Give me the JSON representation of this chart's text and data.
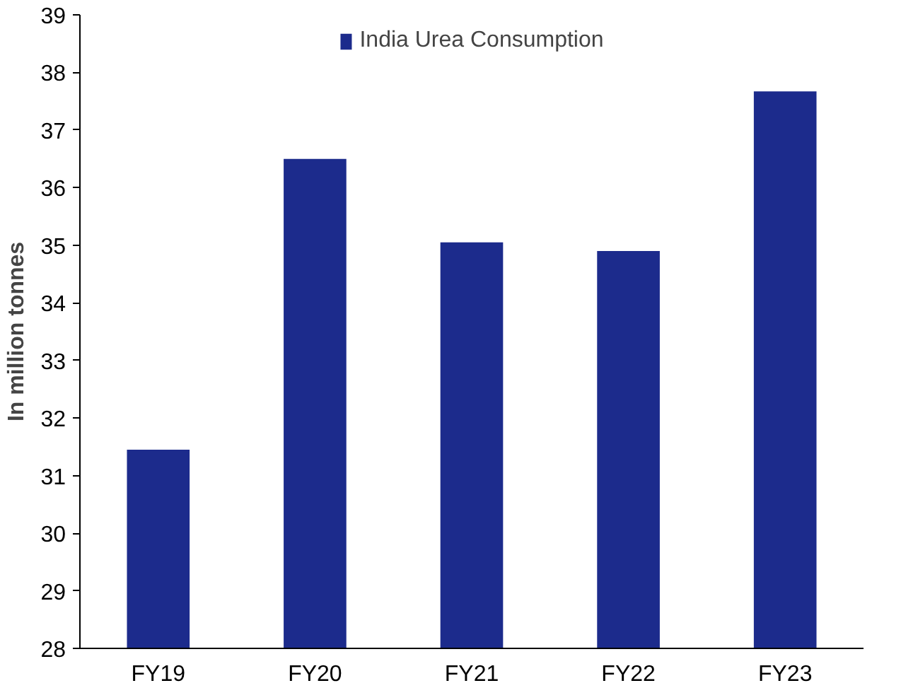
{
  "chart_data": {
    "type": "bar",
    "ylabel": "In million tonnes",
    "categories": [
      "FY19",
      "FY20",
      "FY21",
      "FY22",
      "FY23"
    ],
    "series": [
      {
        "name": "India Urea Consumption",
        "color": "#1c2b8c",
        "values": [
          31.45,
          36.5,
          35.05,
          34.9,
          37.67
        ]
      }
    ],
    "ylim": [
      28,
      39
    ],
    "yticks": [
      28,
      29,
      30,
      31,
      32,
      33,
      34,
      35,
      36,
      37,
      38,
      39
    ],
    "grid": false,
    "legend": "top"
  }
}
